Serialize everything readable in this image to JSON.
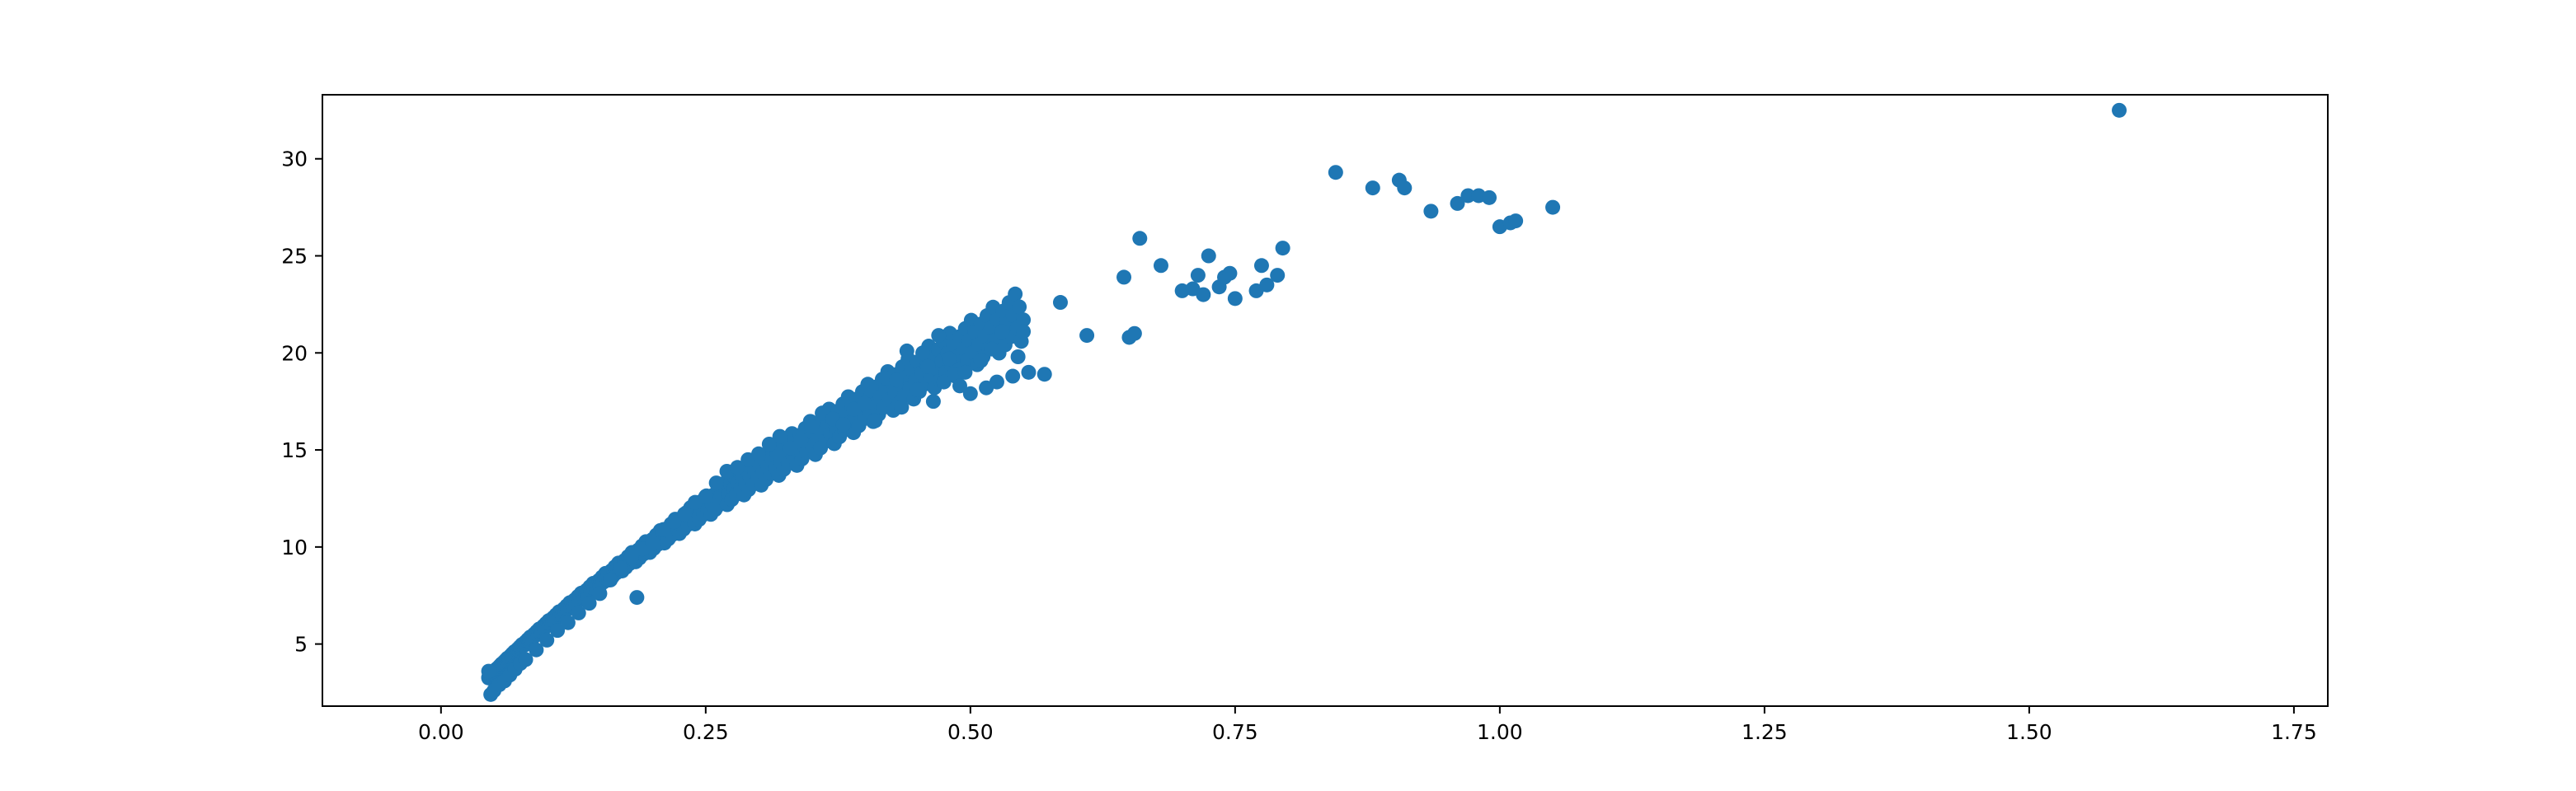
{
  "chart_data": {
    "type": "scatter",
    "title": "",
    "xlabel": "",
    "ylabel": "",
    "xlim": [
      -0.112,
      1.782
    ],
    "ylim": [
      1.8,
      33.3
    ],
    "xticks": [
      0.0,
      0.25,
      0.5,
      0.75,
      1.0,
      1.25,
      1.5,
      1.75
    ],
    "xtick_labels": [
      "0.00",
      "0.25",
      "0.50",
      "0.75",
      "1.00",
      "1.25",
      "1.50",
      "1.75"
    ],
    "yticks": [
      5,
      10,
      15,
      20,
      25,
      30
    ],
    "ytick_labels": [
      "5",
      "10",
      "15",
      "20",
      "25",
      "30"
    ],
    "grid": false,
    "legend": "none",
    "marker_color": "#1f77b4",
    "series": [
      {
        "main_curve": {
          "x_start": 0.045,
          "x_end": 0.55,
          "count": 420,
          "coefficient": 34.6,
          "exponent": 0.76
        },
        "points": [
          [
            0.045,
            3.6
          ],
          [
            0.047,
            2.4
          ],
          [
            0.05,
            2.6
          ],
          [
            0.055,
            2.9
          ],
          [
            0.06,
            3.1
          ],
          [
            0.065,
            3.4
          ],
          [
            0.07,
            3.7
          ],
          [
            0.075,
            4.0
          ],
          [
            0.08,
            4.2
          ],
          [
            0.09,
            4.7
          ],
          [
            0.1,
            5.2
          ],
          [
            0.11,
            5.7
          ],
          [
            0.12,
            6.1
          ],
          [
            0.13,
            6.6
          ],
          [
            0.14,
            7.1
          ],
          [
            0.15,
            7.6
          ],
          [
            0.16,
            8.3
          ],
          [
            0.17,
            8.9
          ],
          [
            0.18,
            9.5
          ],
          [
            0.185,
            7.4
          ],
          [
            0.19,
            9.9
          ],
          [
            0.2,
            10.2
          ],
          [
            0.21,
            10.9
          ],
          [
            0.22,
            11.3
          ],
          [
            0.23,
            11.7
          ],
          [
            0.24,
            12.3
          ],
          [
            0.25,
            12.6
          ],
          [
            0.26,
            13.3
          ],
          [
            0.27,
            13.9
          ],
          [
            0.28,
            14.1
          ],
          [
            0.29,
            14.5
          ],
          [
            0.3,
            14.8
          ],
          [
            0.31,
            15.3
          ],
          [
            0.32,
            15.7
          ],
          [
            0.33,
            15.1
          ],
          [
            0.34,
            15.5
          ],
          [
            0.35,
            16.2
          ],
          [
            0.36,
            16.9
          ],
          [
            0.37,
            16.6
          ],
          [
            0.38,
            16.3
          ],
          [
            0.39,
            17.1
          ],
          [
            0.4,
            17.4
          ],
          [
            0.41,
            16.5
          ],
          [
            0.42,
            18.7
          ],
          [
            0.43,
            18.6
          ],
          [
            0.435,
            17.2
          ],
          [
            0.44,
            20.1
          ],
          [
            0.45,
            18.1
          ],
          [
            0.455,
            20.0
          ],
          [
            0.46,
            19.3
          ],
          [
            0.465,
            17.5
          ],
          [
            0.47,
            20.9
          ],
          [
            0.475,
            18.5
          ],
          [
            0.48,
            19.7
          ],
          [
            0.485,
            18.9
          ],
          [
            0.49,
            18.3
          ],
          [
            0.495,
            19.0
          ],
          [
            0.5,
            17.9
          ],
          [
            0.51,
            19.6
          ],
          [
            0.515,
            18.2
          ],
          [
            0.52,
            20.2
          ],
          [
            0.525,
            18.5
          ],
          [
            0.53,
            21.1
          ],
          [
            0.54,
            18.8
          ],
          [
            0.545,
            19.8
          ],
          [
            0.55,
            21.1
          ],
          [
            0.555,
            19.0
          ],
          [
            0.57,
            18.9
          ],
          [
            0.585,
            22.6
          ],
          [
            0.61,
            20.9
          ],
          [
            0.645,
            23.9
          ],
          [
            0.65,
            20.8
          ],
          [
            0.655,
            21.0
          ],
          [
            0.66,
            25.9
          ],
          [
            0.68,
            24.5
          ],
          [
            0.7,
            23.2
          ],
          [
            0.71,
            23.3
          ],
          [
            0.715,
            24.0
          ],
          [
            0.72,
            23.0
          ],
          [
            0.725,
            25.0
          ],
          [
            0.735,
            23.4
          ],
          [
            0.74,
            23.9
          ],
          [
            0.745,
            24.1
          ],
          [
            0.75,
            22.8
          ],
          [
            0.77,
            23.2
          ],
          [
            0.775,
            24.5
          ],
          [
            0.78,
            23.5
          ],
          [
            0.79,
            24.0
          ],
          [
            0.795,
            25.4
          ],
          [
            0.845,
            29.3
          ],
          [
            0.88,
            28.5
          ],
          [
            0.905,
            28.9
          ],
          [
            0.91,
            28.5
          ],
          [
            0.935,
            27.3
          ],
          [
            0.96,
            27.7
          ],
          [
            0.97,
            28.1
          ],
          [
            0.98,
            28.1
          ],
          [
            0.99,
            28.0
          ],
          [
            1.0,
            26.5
          ],
          [
            1.01,
            26.7
          ],
          [
            1.015,
            26.8
          ],
          [
            1.05,
            27.5
          ],
          [
            1.585,
            32.5
          ]
        ]
      }
    ]
  }
}
